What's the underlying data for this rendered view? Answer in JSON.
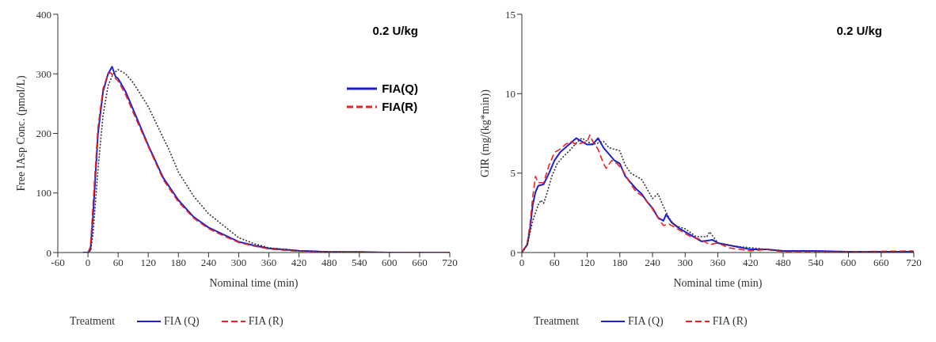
{
  "chart_data": [
    {
      "type": "line",
      "xlabel": "Nominal time (min)",
      "ylabel": "Free IAsp Conc. (pmol/L)",
      "legend_title": "Treatment",
      "legend": "bottom",
      "xlim": [
        -60,
        720
      ],
      "xticks": [
        -60,
        0,
        60,
        120,
        180,
        240,
        300,
        360,
        420,
        480,
        540,
        600,
        660,
        720
      ],
      "ylim": [
        0,
        400
      ],
      "yticks": [
        0,
        100,
        200,
        300,
        400
      ],
      "grid": false,
      "annotations": [
        "0.2 U/kg",
        "FIA(Q)",
        "FIA(R)"
      ],
      "series": [
        {
          "name": "FIA (Q)",
          "color": "#1f1fd0",
          "line_style": "solid",
          "x": [
            -10,
            0,
            5,
            10,
            20,
            30,
            40,
            48,
            55,
            60,
            75,
            90,
            120,
            150,
            180,
            210,
            240,
            270,
            300,
            330,
            360,
            420,
            480,
            540,
            600,
            720
          ],
          "values": [
            0,
            0,
            5,
            60,
            200,
            270,
            300,
            312,
            295,
            292,
            270,
            240,
            180,
            125,
            88,
            60,
            42,
            30,
            18,
            12,
            7,
            3,
            1,
            1,
            0,
            0
          ]
        },
        {
          "name": "FIA (R)",
          "color": "#ee2222",
          "line_style": "dashed",
          "x": [
            0,
            5,
            10,
            20,
            30,
            40,
            45,
            55,
            60,
            75,
            90,
            120,
            150,
            180,
            210,
            240,
            270,
            300,
            330,
            360,
            420,
            480,
            600,
            720
          ],
          "values": [
            0,
            10,
            80,
            210,
            275,
            300,
            302,
            292,
            288,
            265,
            235,
            178,
            122,
            85,
            58,
            40,
            28,
            17,
            11,
            6,
            2,
            1,
            0,
            0
          ]
        },
        {
          "color": "#333333",
          "line_style": "dotted",
          "x": [
            -10,
            0,
            5,
            10,
            20,
            30,
            40,
            50,
            60,
            75,
            90,
            120,
            150,
            160,
            180,
            210,
            240,
            270,
            300,
            330,
            360,
            420,
            480,
            600,
            720
          ],
          "values": [
            0,
            0,
            3,
            30,
            140,
            230,
            280,
            300,
            307,
            300,
            285,
            245,
            192,
            175,
            135,
            95,
            65,
            45,
            25,
            15,
            8,
            3,
            1,
            0,
            0
          ]
        }
      ]
    },
    {
      "type": "line",
      "xlabel": "Nominal time (min)",
      "ylabel": "GIR (mg/(kg*min))",
      "legend_title": "Treatment",
      "legend": "bottom",
      "xlim": [
        0,
        720
      ],
      "xticks": [
        0,
        60,
        120,
        180,
        240,
        300,
        360,
        420,
        480,
        540,
        600,
        660,
        720
      ],
      "ylim": [
        0,
        15
      ],
      "yticks": [
        0,
        5,
        10,
        15
      ],
      "grid": false,
      "annotations": [
        "0.2 U/kg"
      ],
      "series": [
        {
          "name": "FIA (Q)",
          "color": "#1f1fd0",
          "line_style": "solid",
          "x": [
            0,
            10,
            15,
            20,
            25,
            30,
            40,
            50,
            60,
            70,
            80,
            90,
            100,
            110,
            120,
            130,
            140,
            150,
            160,
            170,
            180,
            190,
            200,
            210,
            220,
            230,
            240,
            250,
            260,
            265,
            275,
            290,
            300,
            320,
            330,
            350,
            360,
            390,
            420,
            450,
            480,
            540,
            600,
            720
          ],
          "values": [
            0,
            0.5,
            1.5,
            3,
            3.8,
            4.2,
            4.3,
            5,
            5.8,
            6.3,
            6.6,
            6.9,
            7.2,
            7.0,
            6.8,
            6.8,
            7.2,
            6.6,
            6.2,
            5.8,
            5.6,
            4.8,
            4.4,
            4.0,
            3.7,
            3.2,
            2.8,
            2.2,
            2.0,
            2.4,
            1.9,
            1.5,
            1.3,
            0.9,
            0.7,
            0.8,
            0.6,
            0.4,
            0.2,
            0.2,
            0.1,
            0.1,
            0.05,
            0.05
          ]
        },
        {
          "name": "FIA (R)",
          "color": "#ee2222",
          "line_style": "dashed",
          "x": [
            0,
            10,
            15,
            20,
            25,
            30,
            40,
            50,
            60,
            70,
            80,
            90,
            100,
            110,
            120,
            125,
            130,
            140,
            150,
            155,
            165,
            175,
            185,
            195,
            210,
            220,
            235,
            250,
            260,
            270,
            290,
            310,
            330,
            345,
            360,
            380,
            420,
            450,
            480,
            600,
            720
          ],
          "values": [
            0,
            0.6,
            1.8,
            3.5,
            4.8,
            4.4,
            4.4,
            5.5,
            6.3,
            6.5,
            6.8,
            7.0,
            6.8,
            6.9,
            7.0,
            7.4,
            7.0,
            6.5,
            5.6,
            5.3,
            5.8,
            5.6,
            5.2,
            4.6,
            3.8,
            3.6,
            3.0,
            2.2,
            1.7,
            1.8,
            1.4,
            1.0,
            0.8,
            0.5,
            0.6,
            0.3,
            0.1,
            0.2,
            0.05,
            0.05,
            0.1
          ]
        },
        {
          "color": "#333333",
          "line_style": "dotted",
          "x": [
            0,
            10,
            20,
            30,
            35,
            40,
            45,
            55,
            65,
            75,
            90,
            100,
            110,
            120,
            130,
            140,
            150,
            160,
            170,
            180,
            190,
            200,
            210,
            220,
            230,
            240,
            250,
            260,
            270,
            280,
            300,
            320,
            340,
            345,
            360,
            390,
            420,
            450,
            480,
            600,
            720
          ],
          "values": [
            0,
            0.5,
            2,
            3.0,
            3.3,
            3.1,
            3.6,
            4.8,
            5.6,
            6.0,
            6.5,
            6.9,
            7.2,
            7.0,
            6.8,
            6.9,
            7.0,
            6.6,
            6.5,
            6.4,
            5.5,
            5.0,
            4.8,
            4.6,
            4.0,
            3.4,
            3.7,
            2.9,
            2.2,
            1.7,
            1.5,
            1.0,
            1.0,
            1.3,
            0.6,
            0.4,
            0.3,
            0.2,
            0.1,
            0.05,
            0.05
          ]
        }
      ]
    }
  ]
}
